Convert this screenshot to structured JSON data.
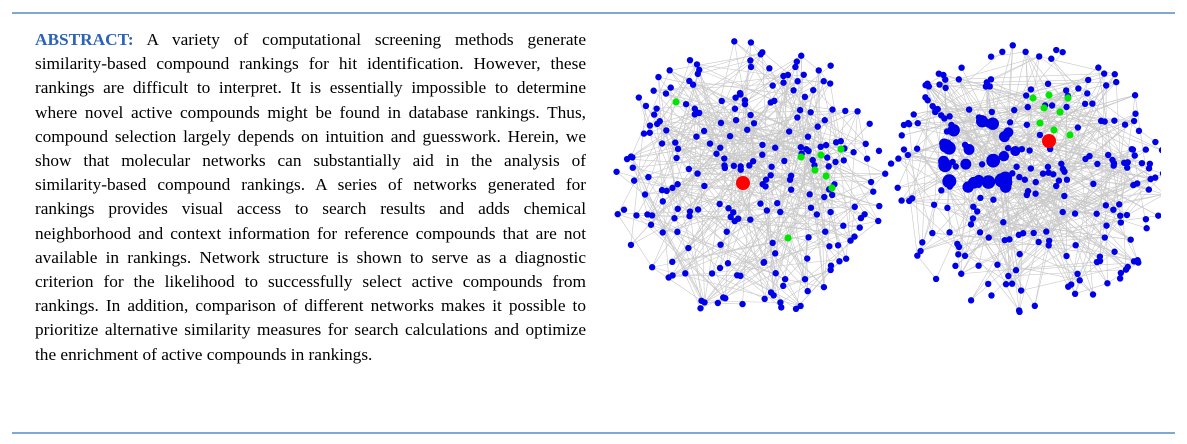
{
  "abstract": {
    "label": "ABSTRACT:",
    "text": "A variety of computational screening methods generate similarity-based compound rankings for hit identification. However, these rankings are difficult to interpret. It is essentially impossible to determine where novel active compounds might be found in database rankings. Thus, compound selection largely depends on intuition and guesswork. Herein, we show that molecular networks can substantially aid in the analysis of similarity-based compound rankings. A series of networks generated for rankings provides visual access to search results and adds chemical neighborhood and context information for reference compounds that are not available in rankings. Network structure is shown to serve as a diagnostic criterion for the likelihood to successfully select active compounds from rankings. In addition, comparison of different networks makes it possible to prioritize alternative similarity measures for search calculations and optimize the enrichment of active compounds in rankings."
  },
  "colors": {
    "rule": "#7fa8d6",
    "label": "#2a63b8",
    "node": "#0000e6",
    "active_node": "#00e600",
    "reference_node": "#ff0000",
    "edge": "#c8c8c8"
  },
  "toc_graphic": {
    "panels": [
      {
        "name": "left-network",
        "seed": 11,
        "hub_nodes": 0,
        "active_nodes": 8
      },
      {
        "name": "right-network",
        "seed": 29,
        "hub_nodes": 24,
        "active_nodes": 8
      }
    ]
  }
}
